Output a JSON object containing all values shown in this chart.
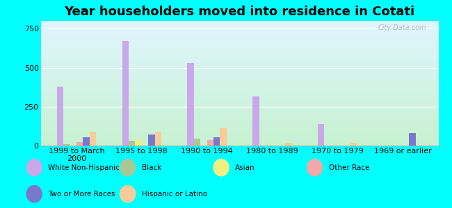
{
  "title": "Year householders moved into residence in Cotati",
  "categories": [
    "1999 to March\n2000",
    "1995 to 1998",
    "1990 to 1994",
    "1980 to 1989",
    "1970 to 1979",
    "1969 or earlier"
  ],
  "series_order": [
    "White Non-Hispanic",
    "Black",
    "Asian",
    "Other Race",
    "Two or More Races",
    "Hispanic or Latino"
  ],
  "series": {
    "White Non-Hispanic": [
      380,
      670,
      530,
      315,
      140,
      0
    ],
    "Black": [
      8,
      30,
      45,
      0,
      0,
      0
    ],
    "Asian": [
      0,
      35,
      0,
      0,
      0,
      0
    ],
    "Other Race": [
      22,
      0,
      35,
      0,
      0,
      0
    ],
    "Two or More Races": [
      55,
      70,
      55,
      0,
      0,
      80
    ],
    "Hispanic or Latino": [
      90,
      90,
      110,
      18,
      18,
      0
    ]
  },
  "colors": {
    "White Non-Hispanic": "#c8a8e8",
    "Black": "#a8c898",
    "Asian": "#f0f080",
    "Other Race": "#f0a8a8",
    "Two or More Races": "#7878cc",
    "Hispanic or Latino": "#f8cc98"
  },
  "ylim": [
    0,
    800
  ],
  "yticks": [
    0,
    250,
    500,
    750
  ],
  "background_color": "#00ffff",
  "title_fontsize": 13,
  "tick_fontsize": 8,
  "bar_width": 0.1
}
